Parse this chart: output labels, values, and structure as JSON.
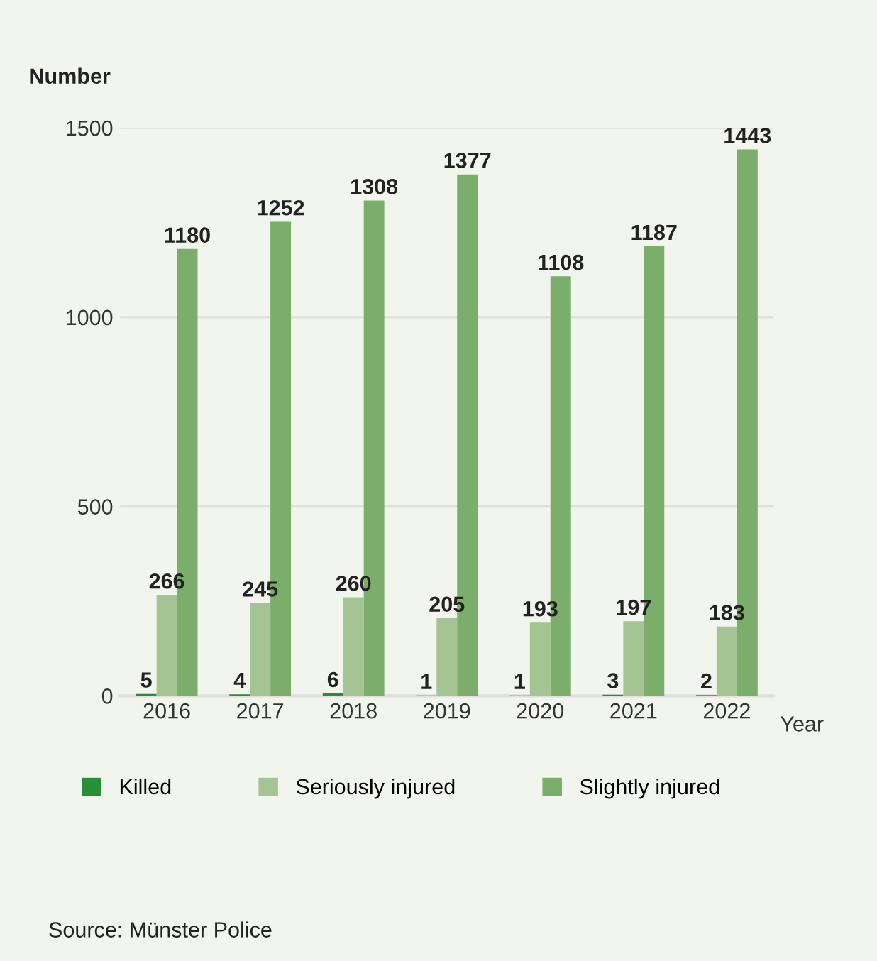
{
  "chart_data": {
    "type": "bar",
    "ylabel": "Number",
    "xlabel": "Year",
    "categories": [
      "2016",
      "2017",
      "2018",
      "2019",
      "2020",
      "2021",
      "2022"
    ],
    "series": [
      {
        "name": "Killed",
        "color": "#269036",
        "values": [
          5,
          4,
          6,
          1,
          1,
          3,
          2
        ]
      },
      {
        "name": "Seriously injured",
        "color": "#a4c493",
        "values": [
          266,
          245,
          260,
          205,
          193,
          197,
          183
        ]
      },
      {
        "name": "Slightly injured",
        "color": "#7aae6a",
        "values": [
          1180,
          1252,
          1308,
          1377,
          1108,
          1187,
          1443
        ]
      }
    ],
    "ylim": [
      0,
      1500
    ],
    "yticks": [
      0,
      500,
      1000,
      1500
    ],
    "grid": "y",
    "legend": "bottom",
    "data_labels": true,
    "annotations": [
      "Source: Münster Police"
    ]
  }
}
